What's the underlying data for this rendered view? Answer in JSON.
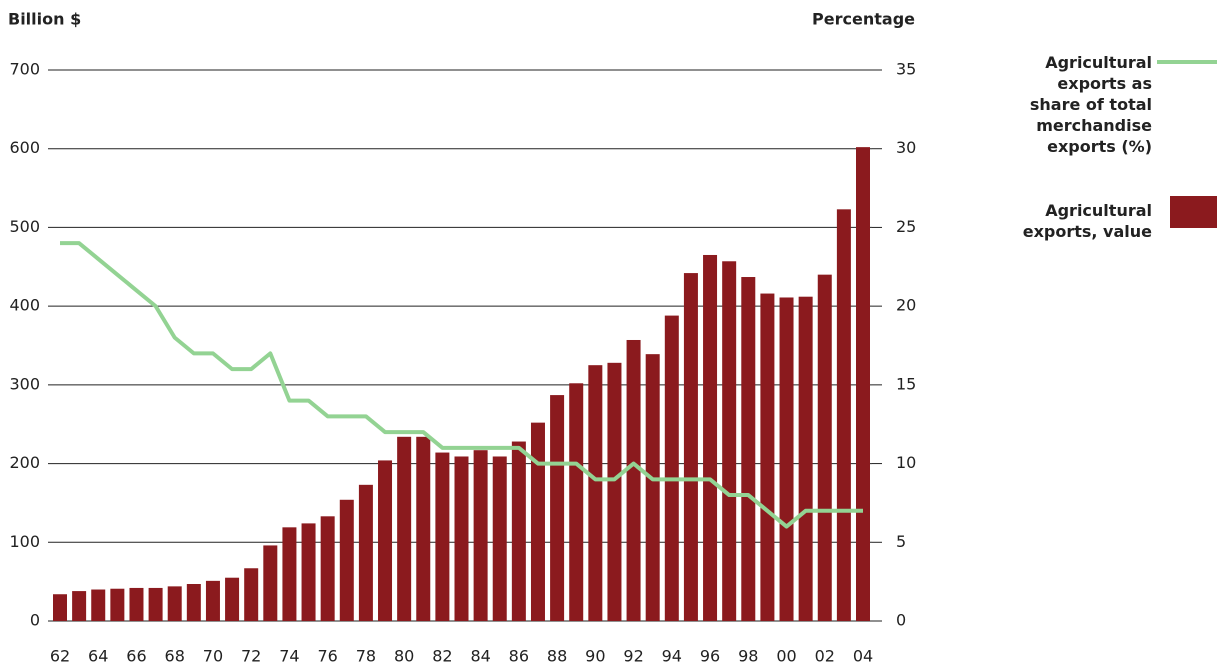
{
  "chart_data": {
    "type": "bar",
    "ylabel": "Billion $",
    "y2label": "Percentage",
    "categories": [
      "62",
      null,
      "64",
      null,
      "66",
      null,
      "68",
      null,
      "70",
      null,
      "72",
      null,
      "74",
      null,
      "76",
      null,
      "78",
      null,
      "80",
      null,
      "82",
      null,
      "84",
      null,
      "86",
      null,
      "88",
      null,
      "90",
      null,
      "92",
      null,
      "94",
      null,
      "96",
      null,
      "98",
      null,
      "00",
      null,
      "02",
      null,
      "04"
    ],
    "series": [
      {
        "name": "Agricultural exports as share of total merchandise exports (%)",
        "type": "line",
        "axis": "y2",
        "color": "#93d393",
        "values": [
          24,
          24,
          23,
          22,
          21,
          20,
          18,
          17,
          17,
          16,
          16,
          17,
          14,
          14,
          13,
          13,
          13,
          12,
          12,
          12,
          11,
          11,
          11,
          11,
          11,
          10,
          10,
          10,
          9,
          9,
          10,
          9,
          9,
          9,
          9,
          8,
          8,
          7,
          6,
          7,
          7,
          7,
          7
        ]
      },
      {
        "name": "Agricultural exports, value",
        "type": "bar",
        "color": "#8b1a1e",
        "values": [
          34,
          38,
          40,
          41,
          42,
          42,
          44,
          47,
          51,
          55,
          67,
          96,
          119,
          124,
          133,
          154,
          173,
          204,
          234,
          234,
          214,
          209,
          217,
          209,
          228,
          252,
          287,
          302,
          325,
          328,
          357,
          339,
          388,
          442,
          465,
          457,
          437,
          416,
          411,
          412,
          440,
          523,
          602
        ]
      }
    ],
    "ylim": [
      0,
      700
    ],
    "yticks": [
      0,
      100,
      200,
      300,
      400,
      500,
      600,
      700
    ],
    "y2lim": [
      0,
      35
    ],
    "y2ticks": [
      0,
      5,
      10,
      15,
      20,
      25,
      30,
      35
    ],
    "grid": true
  }
}
